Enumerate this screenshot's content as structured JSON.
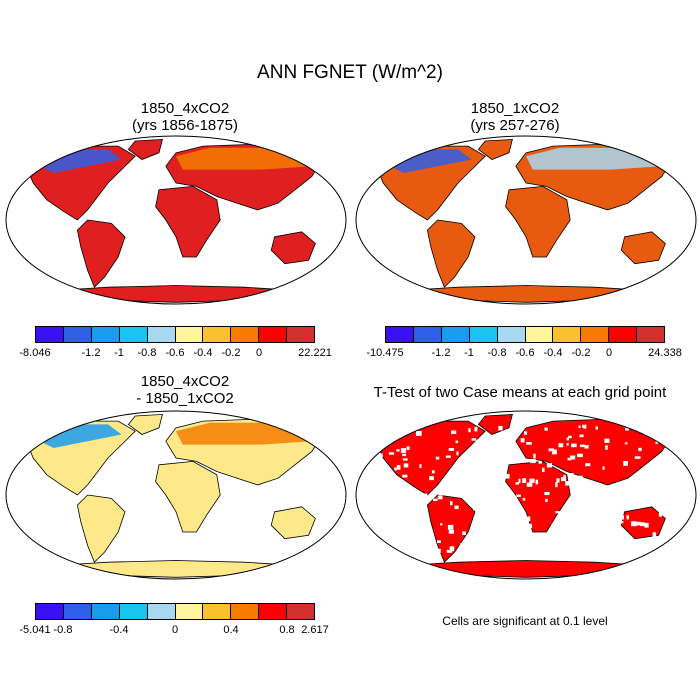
{
  "main_title": "ANN FGNET (W/m^2)",
  "panels": [
    {
      "title_line1": "1850_4xCO2",
      "title_line2": "(yrs 1856-1875)"
    },
    {
      "title_line1": "1850_1xCO2",
      "title_line2": "(yrs 257-276)"
    },
    {
      "title_line1": "1850_4xCO2",
      "title_line2": "- 1850_1xCO2"
    },
    {
      "title_line1": "T-Test of two Case means at each grid point",
      "title_line2": ""
    }
  ],
  "colorbars": [
    {
      "min_label": "-8.046",
      "max_label": "22.221",
      "labels": [
        "-1.2",
        "-1",
        "-0.8",
        "-0.6",
        "-0.4",
        "-0.2",
        "0"
      ],
      "colors": [
        "#3a10f5",
        "#2e5fe6",
        "#1a9bf0",
        "#18c4f0",
        "#a8d8f0",
        "#fff59d",
        "#fbc02d",
        "#f57c00",
        "#ff0000",
        "#d32f2f"
      ]
    },
    {
      "min_label": "-10.475",
      "max_label": "24.338",
      "labels": [
        "-1.2",
        "-1",
        "-0.8",
        "-0.6",
        "-0.4",
        "-0.2",
        "0"
      ],
      "colors": [
        "#3a10f5",
        "#2e5fe6",
        "#1a9bf0",
        "#18c4f0",
        "#a8d8f0",
        "#fff59d",
        "#fbc02d",
        "#f57c00",
        "#ff0000",
        "#d32f2f"
      ]
    },
    {
      "min_label": "-5.041",
      "max_label": "2.617",
      "labels": [
        "-0.8",
        "-0.4",
        "0",
        "0.4",
        "0.8"
      ],
      "colors": [
        "#3a10f5",
        "#2e5fe6",
        "#1a9bf0",
        "#18c4f0",
        "#a8d8f0",
        "#fff59d",
        "#fbc02d",
        "#f57c00",
        "#ff0000",
        "#d32f2f"
      ]
    }
  ],
  "significance_note": "Cells are significant at 0.1 level",
  "colors": {
    "land_panel1": "#e02020",
    "land_panel2": "#e85a10",
    "land_panel3": "#fde98a",
    "signif": "#ff0000",
    "cold": "#2e5fe6",
    "warm": "#f57c00"
  }
}
